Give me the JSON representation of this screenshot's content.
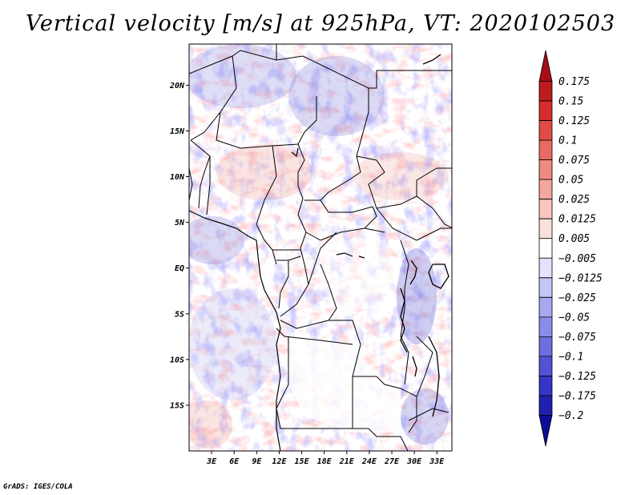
{
  "title": "Vertical velocity [m/s] at 925hPa, VT: 2020102503",
  "credit": "GrADS: IGES/COLA",
  "map": {
    "lat_labels": [
      "20N",
      "15N",
      "10N",
      "5N",
      "EQ",
      "5S",
      "10S",
      "15S"
    ],
    "lat_values": [
      20,
      15,
      10,
      5,
      0,
      -5,
      -10,
      -15
    ],
    "lon_labels": [
      "3E",
      "6E",
      "9E",
      "12E",
      "15E",
      "18E",
      "21E",
      "24E",
      "27E",
      "30E",
      "33E"
    ],
    "lon_values": [
      3,
      6,
      9,
      12,
      15,
      18,
      21,
      24,
      27,
      30,
      33
    ],
    "lon_range": [
      0,
      35
    ],
    "lat_range": [
      -20,
      24.5
    ]
  },
  "colorbar": {
    "labels": [
      "0.175",
      "0.15",
      "0.125",
      "0.1",
      "0.075",
      "0.05",
      "0.025",
      "0.0125",
      "0.005",
      "−0.005",
      "−0.0125",
      "−0.025",
      "−0.05",
      "−0.075",
      "−0.1",
      "−0.125",
      "−0.175",
      "−0.2"
    ],
    "colors": [
      "#a50f15",
      "#bd1c1f",
      "#d42d2b",
      "#e04c45",
      "#e86b63",
      "#ef8a80",
      "#f4a79c",
      "#f8c6bd",
      "#fbe1dc",
      "#ffffff",
      "#e3e3fb",
      "#c6c6f6",
      "#a8a8f0",
      "#8b8be9",
      "#6e6ee0",
      "#5252d6",
      "#3535c6",
      "#1f1fb0",
      "#0c0c96"
    ]
  }
}
